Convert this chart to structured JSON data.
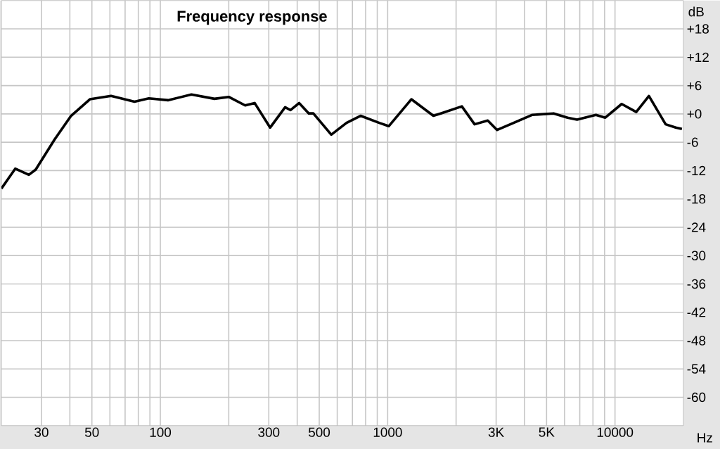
{
  "chart_data": {
    "type": "line",
    "title": "Frequency response",
    "xlabel": "Hz",
    "ylabel": "dB",
    "log": "x",
    "grid": true,
    "color": "#000000",
    "xlim": [
      20,
      20000
    ],
    "ylim": [
      -66,
      24
    ],
    "xticks": [
      {
        "value": 30,
        "label": "30"
      },
      {
        "value": 40,
        "label": null
      },
      {
        "value": 50,
        "label": "50"
      },
      {
        "value": 60,
        "label": null
      },
      {
        "value": 70,
        "label": null
      },
      {
        "value": 80,
        "label": null
      },
      {
        "value": 90,
        "label": null
      },
      {
        "value": 100,
        "label": "100"
      },
      {
        "value": 200,
        "label": null
      },
      {
        "value": 300,
        "label": "300"
      },
      {
        "value": 400,
        "label": null
      },
      {
        "value": 500,
        "label": "500"
      },
      {
        "value": 600,
        "label": null
      },
      {
        "value": 700,
        "label": null
      },
      {
        "value": 800,
        "label": null
      },
      {
        "value": 900,
        "label": null
      },
      {
        "value": 1000,
        "label": "1000"
      },
      {
        "value": 2000,
        "label": null
      },
      {
        "value": 3000,
        "label": "3K"
      },
      {
        "value": 4000,
        "label": null
      },
      {
        "value": 5000,
        "label": "5K"
      },
      {
        "value": 6000,
        "label": null
      },
      {
        "value": 7000,
        "label": null
      },
      {
        "value": 8000,
        "label": null
      },
      {
        "value": 9000,
        "label": null
      },
      {
        "value": 10000,
        "label": "10000"
      }
    ],
    "yticks": [
      {
        "value": 18,
        "label": "+18"
      },
      {
        "value": 12,
        "label": "+12"
      },
      {
        "value": 6,
        "label": "+6"
      },
      {
        "value": 0,
        "label": "+0"
      },
      -6,
      -12,
      -18,
      -24,
      -30,
      -36,
      -42,
      -48,
      -54,
      -60
    ],
    "x": [
      20,
      23,
      26.4,
      28.3,
      34.3,
      40.5,
      49,
      60.7,
      77,
      89,
      108,
      137,
      173,
      200,
      236,
      260,
      304,
      354,
      374,
      408,
      450,
      471,
      565,
      659,
      760,
      919,
      1011,
      1271,
      1589,
      1712,
      2120,
      2412,
      2756,
      3030,
      3580,
      4330,
      5370,
      6190,
      6810,
      8240,
      9060,
      10700,
      12400,
      14100,
      16700,
      18500,
      19700
    ],
    "values": [
      -15.8,
      -11.6,
      -12.9,
      -11.8,
      -5.4,
      -0.4,
      3.1,
      3.8,
      2.6,
      3.3,
      2.9,
      4.1,
      3.2,
      3.6,
      1.8,
      2.3,
      -2.9,
      1.4,
      0.8,
      2.3,
      0.1,
      0.1,
      -4.4,
      -1.9,
      -0.4,
      -1.9,
      -2.6,
      3.1,
      -0.4,
      0.1,
      1.6,
      -2.2,
      -1.4,
      -3.4,
      -1.9,
      -0.2,
      0.1,
      -0.8,
      -1.2,
      -0.2,
      -0.8,
      2.1,
      0.4,
      3.8,
      -2.2,
      -2.9,
      -3.2
    ]
  }
}
